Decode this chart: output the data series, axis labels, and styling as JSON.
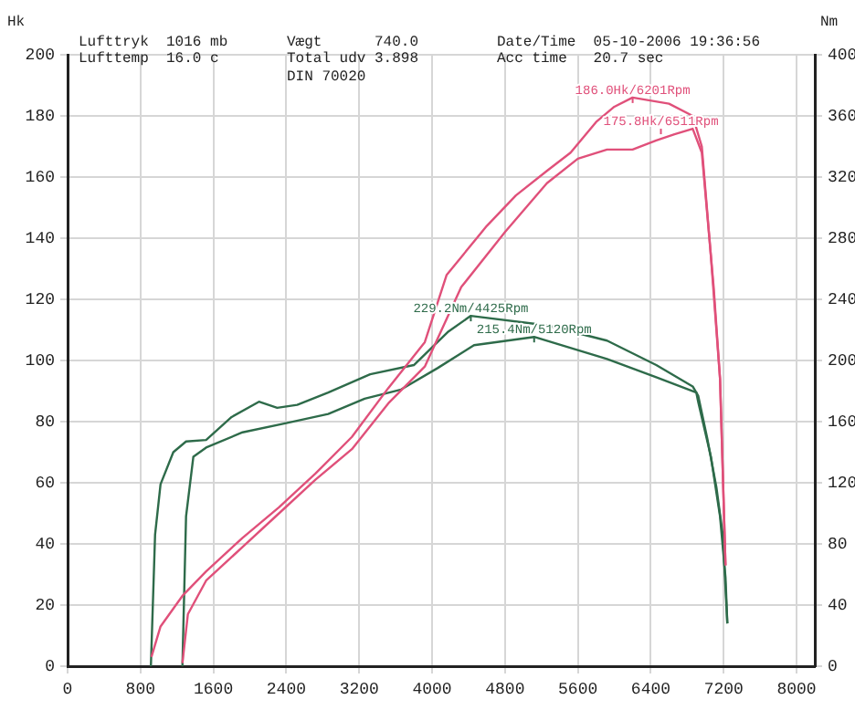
{
  "chart_data": {
    "type": "line",
    "ylabel": "Hk",
    "y2label": "Nm",
    "xlim": [
      0,
      8200
    ],
    "xticks": [
      0,
      800,
      1600,
      2400,
      3200,
      4000,
      4800,
      5600,
      6400,
      7200,
      8000
    ],
    "ylim": [
      0,
      200
    ],
    "yticks": [
      0,
      20,
      40,
      60,
      80,
      100,
      120,
      140,
      160,
      180,
      200
    ],
    "y2lim": [
      0,
      400
    ],
    "y2ticks": [
      0,
      40,
      80,
      120,
      160,
      200,
      240,
      280,
      320,
      360,
      400
    ],
    "grid": true,
    "legend": false,
    "marker": "none",
    "line_style": "solid",
    "series": [
      {
        "color": "#e0507a",
        "x": [
          920,
          1020,
          1260,
          1520,
          1920,
          2320,
          2720,
          3120,
          3520,
          3920,
          4160,
          4600,
          4920,
          5260,
          5520,
          5800,
          6000,
          6200,
          6600,
          6860,
          6960,
          7060,
          7160,
          7220
        ],
        "values": [
          3,
          13,
          23,
          31,
          42,
          52,
          63,
          75,
          91,
          106,
          128,
          144,
          154,
          162,
          168,
          178,
          183,
          186,
          184,
          180,
          170,
          134,
          94,
          33
        ]
      },
      {
        "color": "#e0507a",
        "x": [
          1260,
          1320,
          1520,
          1920,
          2320,
          2720,
          3120,
          3520,
          3920,
          4320,
          4800,
          5260,
          5600,
          5920,
          6200,
          6460,
          6660,
          6860,
          6960,
          7090,
          7160,
          7220
        ],
        "values": [
          1,
          17,
          28,
          39,
          50,
          61,
          71,
          86,
          98,
          124,
          142,
          158,
          166,
          169,
          169,
          172,
          174,
          175.8,
          168,
          124,
          94,
          33
        ]
      },
      {
        "color": "#2e6b4a",
        "axis": "y2",
        "x": [
          914,
          960,
          1020,
          1160,
          1300,
          1520,
          1800,
          2100,
          2300,
          2520,
          2860,
          3320,
          3800,
          4180,
          4425,
          5260,
          5920,
          6460,
          6860,
          6920,
          7020,
          7120,
          7190,
          7240
        ],
        "values": [
          0,
          86,
          119,
          140,
          147,
          148,
          163,
          173,
          169,
          171,
          179,
          191,
          197,
          219,
          229.2,
          223,
          213,
          197,
          183,
          177,
          149,
          117,
          86,
          28
        ]
      },
      {
        "color": "#2e6b4a",
        "axis": "y2",
        "x": [
          1260,
          1300,
          1380,
          1520,
          1920,
          2400,
          2860,
          3260,
          3660,
          4060,
          4460,
          5120,
          5920,
          6460,
          6900,
          6920,
          7060,
          7160,
          7220,
          7240
        ],
        "values": [
          0,
          98,
          137,
          143,
          153,
          159,
          165,
          175,
          181,
          195,
          210,
          215.4,
          201,
          189,
          179,
          173,
          137,
          98,
          58,
          28
        ]
      }
    ],
    "annotations": [
      {
        "text": "186.0Hk/6201Rpm",
        "x": 6201,
        "y": 186
      },
      {
        "text": "175.8Hk/6511Rpm",
        "x": 6511,
        "y": 175.8
      },
      {
        "text": "229.2Nm/4425Rpm",
        "x": 4425,
        "y": 114.6
      },
      {
        "text": "215.4Nm/5120Rpm",
        "x": 5120,
        "y": 107.7
      },
      "Lufttryk  1016 mb",
      "Lufttemp  16.0 c",
      "Vægt      740.0",
      "Total udv 3.898",
      "DIN 70020",
      "Date/Time  05-10-2006 19:36:56",
      "Acc time   20.7 sec"
    ]
  }
}
